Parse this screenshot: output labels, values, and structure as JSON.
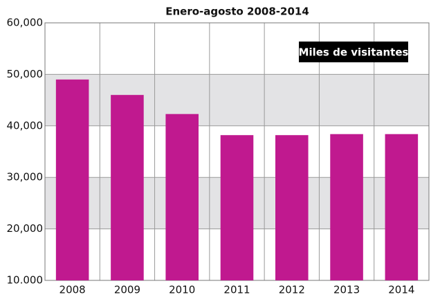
{
  "chart_data": {
    "type": "bar",
    "subtitle": "Enero-agosto 2008-2014",
    "legend_label": "Miles de visitantes",
    "categories": [
      "2008",
      "2009",
      "2010",
      "2011",
      "2012",
      "2013",
      "2014"
    ],
    "values": [
      49000,
      46000,
      42300,
      38200,
      38200,
      38400,
      38400
    ],
    "color": "#c0198f",
    "ylim": [
      10000,
      60000
    ],
    "yticks": [
      {
        "value": 10000,
        "label": "10.000"
      },
      {
        "value": 20000,
        "label": "20,000"
      },
      {
        "value": 30000,
        "label": "30,000"
      },
      {
        "value": 40000,
        "label": "40,000"
      },
      {
        "value": 50000,
        "label": "50,000"
      },
      {
        "value": 60000,
        "label": "60,000"
      }
    ],
    "shaded_bands": [
      [
        20000,
        30000
      ],
      [
        40000,
        50000
      ]
    ],
    "grid": true,
    "legend": "upper right"
  }
}
